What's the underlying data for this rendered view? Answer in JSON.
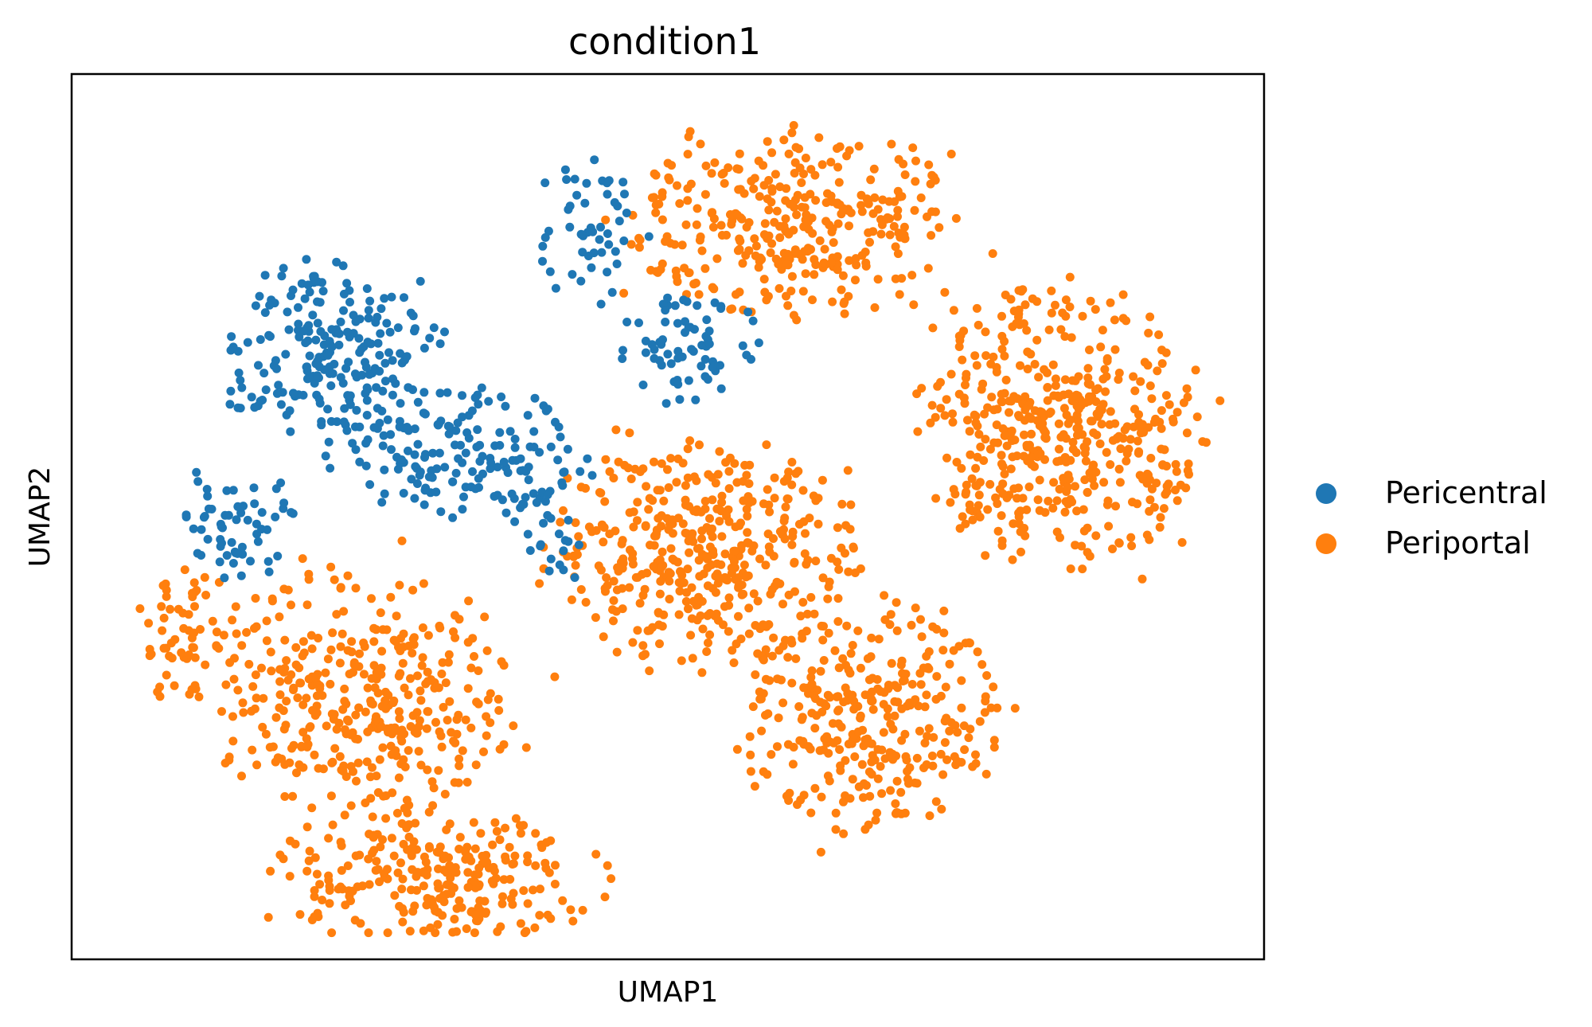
{
  "chart_data": {
    "type": "scatter",
    "title": "condition1",
    "xlabel": "UMAP1",
    "ylabel": "UMAP2",
    "xlim": [
      0,
      100
    ],
    "ylim": [
      0,
      100
    ],
    "ticks": "none",
    "grid": false,
    "legend": {
      "placement": "right",
      "items": [
        {
          "name": "Pericentral",
          "color": "#1f77b4"
        },
        {
          "name": "Periportal",
          "color": "#ff7f0e"
        }
      ]
    },
    "series": [
      {
        "name": "Pericentral",
        "color": "#1f77b4",
        "clusters": [
          {
            "cx": 22,
            "cy": 68,
            "rx": 9,
            "ry": 10,
            "n": 220
          },
          {
            "cx": 33,
            "cy": 57,
            "rx": 10,
            "ry": 7,
            "n": 160
          },
          {
            "cx": 14,
            "cy": 49,
            "rx": 5,
            "ry": 6,
            "n": 60
          },
          {
            "cx": 44,
            "cy": 82,
            "rx": 5,
            "ry": 8,
            "n": 50
          },
          {
            "cx": 52,
            "cy": 69,
            "rx": 6,
            "ry": 6,
            "n": 70
          },
          {
            "cx": 40,
            "cy": 49,
            "rx": 3,
            "ry": 8,
            "n": 25
          }
        ]
      },
      {
        "name": "Periportal",
        "color": "#ff7f0e",
        "clusters": [
          {
            "cx": 24,
            "cy": 30,
            "rx": 13,
            "ry": 14,
            "n": 380
          },
          {
            "cx": 31,
            "cy": 9,
            "rx": 14,
            "ry": 7,
            "n": 260
          },
          {
            "cx": 53,
            "cy": 46,
            "rx": 13,
            "ry": 12,
            "n": 420
          },
          {
            "cx": 67,
            "cy": 27,
            "rx": 11,
            "ry": 13,
            "n": 320
          },
          {
            "cx": 61,
            "cy": 83,
            "rx": 14,
            "ry": 10,
            "n": 340
          },
          {
            "cx": 83,
            "cy": 60,
            "rx": 12,
            "ry": 16,
            "n": 480
          },
          {
            "cx": 10,
            "cy": 37,
            "rx": 4,
            "ry": 8,
            "n": 60
          }
        ]
      }
    ]
  }
}
